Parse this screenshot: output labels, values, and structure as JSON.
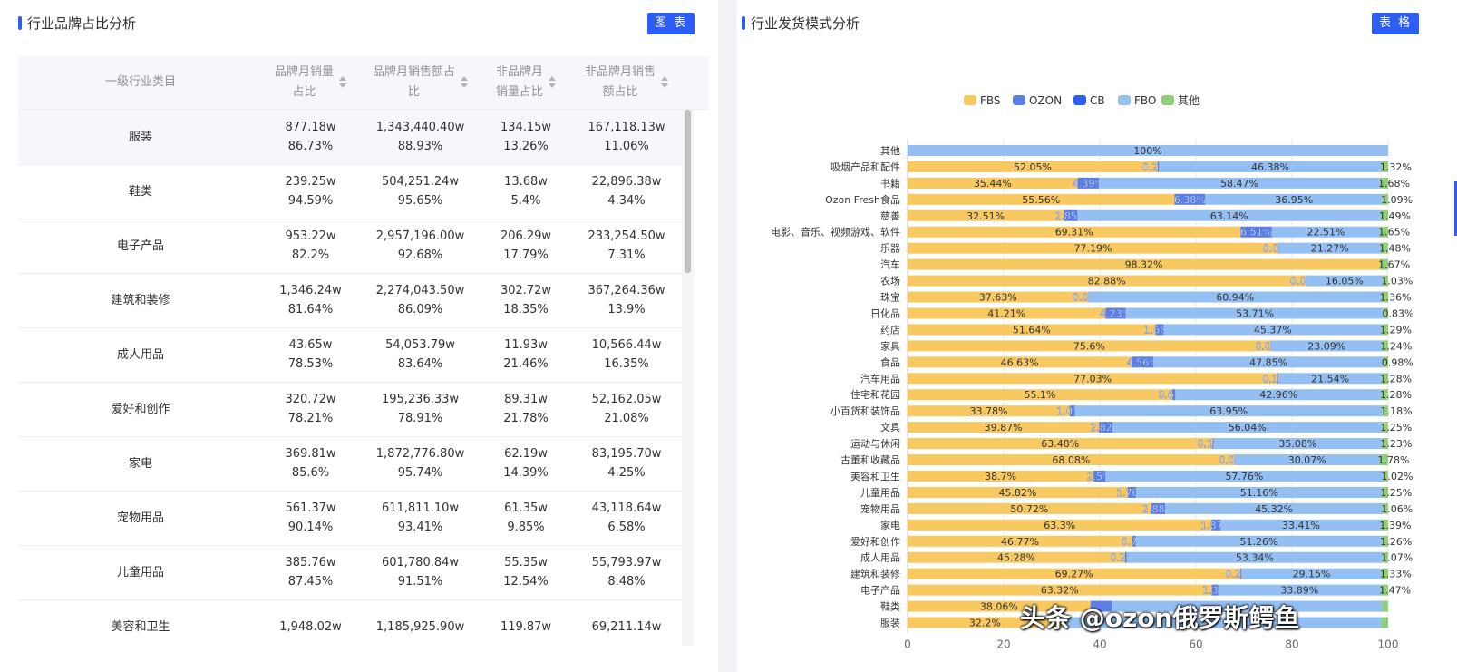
{
  "left_panel": {
    "title": "行业品牌占比分析",
    "toggle_label": "图 表"
  },
  "right_panel": {
    "title": "行业发货模式分析",
    "toggle_label": "表 格"
  },
  "table": {
    "columns": [
      {
        "label": "一级行业类目"
      },
      {
        "label": "品牌月销量占比",
        "line1": "品牌月销量",
        "line2": "占比"
      },
      {
        "label": "品牌月销售额占比",
        "line1": "品牌月销售额占",
        "line2": "比"
      },
      {
        "label": "非品牌月销量占比",
        "line1": "非品牌月",
        "line2": "销量占比"
      },
      {
        "label": "非品牌月销售额占比",
        "line1": "非品牌月销售",
        "line2": "额占比"
      }
    ],
    "rows": [
      {
        "category": "服装",
        "c1": [
          "877.18w",
          "86.73%"
        ],
        "c2": [
          "1,343,440.40w",
          "88.93%"
        ],
        "c3": [
          "134.15w",
          "13.26%"
        ],
        "c4": [
          "167,118.13w",
          "11.06%"
        ]
      },
      {
        "category": "鞋类",
        "c1": [
          "239.25w",
          "94.59%"
        ],
        "c2": [
          "504,251.24w",
          "95.65%"
        ],
        "c3": [
          "13.68w",
          "5.4%"
        ],
        "c4": [
          "22,896.38w",
          "4.34%"
        ]
      },
      {
        "category": "电子产品",
        "c1": [
          "953.22w",
          "82.2%"
        ],
        "c2": [
          "2,957,196.00w",
          "92.68%"
        ],
        "c3": [
          "206.29w",
          "17.79%"
        ],
        "c4": [
          "233,254.50w",
          "7.31%"
        ]
      },
      {
        "category": "建筑和装修",
        "c1": [
          "1,346.24w",
          "81.64%"
        ],
        "c2": [
          "2,274,043.50w",
          "86.09%"
        ],
        "c3": [
          "302.72w",
          "18.35%"
        ],
        "c4": [
          "367,264.36w",
          "13.9%"
        ]
      },
      {
        "category": "成人用品",
        "c1": [
          "43.65w",
          "78.53%"
        ],
        "c2": [
          "54,053.79w",
          "83.64%"
        ],
        "c3": [
          "11.93w",
          "21.46%"
        ],
        "c4": [
          "10,566.44w",
          "16.35%"
        ]
      },
      {
        "category": "爱好和创作",
        "c1": [
          "320.72w",
          "78.21%"
        ],
        "c2": [
          "195,236.33w",
          "78.91%"
        ],
        "c3": [
          "89.31w",
          "21.78%"
        ],
        "c4": [
          "52,162.05w",
          "21.08%"
        ]
      },
      {
        "category": "家电",
        "c1": [
          "369.81w",
          "85.6%"
        ],
        "c2": [
          "1,872,776.80w",
          "95.74%"
        ],
        "c3": [
          "62.19w",
          "14.39%"
        ],
        "c4": [
          "83,195.70w",
          "4.25%"
        ]
      },
      {
        "category": "宠物用品",
        "c1": [
          "561.37w",
          "90.14%"
        ],
        "c2": [
          "611,811.10w",
          "93.41%"
        ],
        "c3": [
          "61.35w",
          "9.85%"
        ],
        "c4": [
          "43,118.64w",
          "6.58%"
        ]
      },
      {
        "category": "儿童用品",
        "c1": [
          "385.76w",
          "87.45%"
        ],
        "c2": [
          "601,780.84w",
          "91.51%"
        ],
        "c3": [
          "55.35w",
          "12.54%"
        ],
        "c4": [
          "55,793.97w",
          "8.48%"
        ]
      },
      {
        "category": "美容和卫生",
        "c1": [
          "1,948.02w",
          ""
        ],
        "c2": [
          "1,185,925.90w",
          ""
        ],
        "c3": [
          "119.87w",
          ""
        ],
        "c4": [
          "69,211.14w",
          ""
        ]
      }
    ]
  },
  "watermark": "头条 @ozon俄罗斯鳄鱼",
  "chart_data": {
    "type": "bar",
    "orientation": "horizontal",
    "stacked": true,
    "legend": {
      "position": "top",
      "items": [
        "FBS",
        "OZON",
        "CB",
        "FBO",
        "其他"
      ]
    },
    "colors": {
      "FBS": "#f8c861",
      "OZON": "#5b7fe5",
      "CB": "#2c5ef5",
      "FBO": "#93bff3",
      "其他": "#8fcf78"
    },
    "xlim": [
      0,
      100
    ],
    "xticks": [
      "0",
      "20",
      "40",
      "60",
      "80",
      "100"
    ],
    "categories": [
      "其他",
      "吸烟产品和配件",
      "书籍",
      "Ozon Fresh食品",
      "慈善",
      "电影、音乐、视频游戏、软件",
      "乐器",
      "汽车",
      "农场",
      "珠宝",
      "日化品",
      "药店",
      "家具",
      "食品",
      "汽车用品",
      "住宅和花园",
      "小百货和装饰品",
      "文具",
      "运动与休闲",
      "古董和收藏品",
      "美容和卫生",
      "儿童用品",
      "宠物用品",
      "家电",
      "爱好和创作",
      "成人用品",
      "建筑和装修",
      "电子产品",
      "鞋类",
      "服装"
    ],
    "series": [
      {
        "name": "FBS",
        "values": [
          0,
          52.05,
          35.44,
          55.56,
          32.51,
          69.31,
          77.19,
          98.32,
          82.88,
          37.63,
          41.21,
          51.64,
          75.6,
          46.63,
          77.03,
          55.1,
          33.78,
          39.87,
          63.48,
          68.08,
          38.7,
          45.82,
          50.72,
          63.3,
          46.77,
          45.28,
          69.27,
          63.32,
          38.06,
          32.2
        ]
      },
      {
        "name": "OZON",
        "values": [
          0,
          0.22,
          4.39,
          6.38,
          2.85,
          6.51,
          0.04,
          0,
          0.02,
          0.05,
          4.23,
          1.68,
          0.06,
          4.56,
          0.14,
          0.63,
          1.07,
          2.82,
          0.19,
          0.05,
          2.5,
          1.76,
          2.88,
          1.87,
          0.7,
          0.29,
          0.22,
          1.3,
          4.39,
          0
        ]
      },
      {
        "name": "CB",
        "values": [
          0,
          0,
          0,
          0,
          0,
          0,
          0,
          0,
          0,
          0,
          0,
          0,
          0,
          0,
          0,
          0,
          0,
          0,
          0,
          0,
          0,
          0,
          0,
          0,
          0,
          0,
          0,
          0,
          0,
          0
        ]
      },
      {
        "name": "FBO",
        "values": [
          100,
          46.38,
          58.47,
          36.95,
          63.14,
          22.51,
          21.27,
          0,
          16.05,
          60.94,
          53.71,
          45.37,
          23.09,
          47.85,
          21.54,
          42.96,
          63.95,
          56.04,
          35.08,
          30.07,
          57.76,
          51.16,
          45.32,
          33.41,
          51.26,
          53.34,
          29.15,
          33.89,
          56.32,
          66.35
        ]
      },
      {
        "name": "其他",
        "values": [
          0,
          1.32,
          1.68,
          1.09,
          1.49,
          1.65,
          1.48,
          1.67,
          1.03,
          1.36,
          0.83,
          1.29,
          1.24,
          0.98,
          1.28,
          1.28,
          1.18,
          1.25,
          1.23,
          1.78,
          1.02,
          1.25,
          1.06,
          1.39,
          1.26,
          1.07,
          1.33,
          1.47,
          1.21,
          1.45
        ]
      }
    ],
    "labels": {
      "FBS": [
        "",
        "52.05%",
        "35.44%",
        "55.56%",
        "32.51%",
        "69.31%",
        "77.19%",
        "98.32%",
        "82.88%",
        "37.63%",
        "41.21%",
        "51.64%",
        "75.6%",
        "46.63%",
        "77.03%",
        "55.1%",
        "33.78%",
        "39.87%",
        "63.48%",
        "68.08%",
        "38.7%",
        "45.82%",
        "50.72%",
        "63.3%",
        "46.77%",
        "45.28%",
        "69.27%",
        "63.32%",
        "38.06%",
        "32.2%"
      ],
      "OZON": [
        "",
        "0.22%",
        "4.39%",
        "6.38%",
        "2.85%",
        "6.51%",
        "0.04%",
        "",
        "0.02%",
        "0.05%",
        "4.23%",
        "1.68%",
        "0.06%",
        "4.56%",
        "0.14%",
        "0.63%",
        "1.07%",
        "2.82%",
        "0.19%",
        "0.05%",
        "2.5%",
        "1.76%",
        "2.88%",
        "1.87%",
        "0.7%",
        "0.29%",
        "0.22%",
        "1.3%",
        "",
        ""
      ],
      "FBO": [
        "100%",
        "46.38%",
        "58.47%",
        "36.95%",
        "63.14%",
        "22.51%",
        "21.27%",
        "",
        "16.05%",
        "60.94%",
        "53.71%",
        "45.37%",
        "23.09%",
        "47.85%",
        "21.54%",
        "42.96%",
        "63.95%",
        "56.04%",
        "35.08%",
        "30.07%",
        "57.76%",
        "51.16%",
        "45.32%",
        "33.41%",
        "51.26%",
        "53.34%",
        "29.15%",
        "33.89%",
        "",
        ""
      ],
      "其他": [
        "",
        "1.32%",
        "1.68%",
        "1.09%",
        "1.49%",
        "1.65%",
        "1.48%",
        "1.67%",
        "1.03%",
        "1.36%",
        "0.83%",
        "1.29%",
        "1.24%",
        "0.98%",
        "1.28%",
        "1.28%",
        "1.18%",
        "1.25%",
        "1.23%",
        "1.78%",
        "1.02%",
        "1.25%",
        "1.06%",
        "1.39%",
        "1.26%",
        "1.07%",
        "1.33%",
        "1.47%",
        "",
        ""
      ]
    }
  }
}
